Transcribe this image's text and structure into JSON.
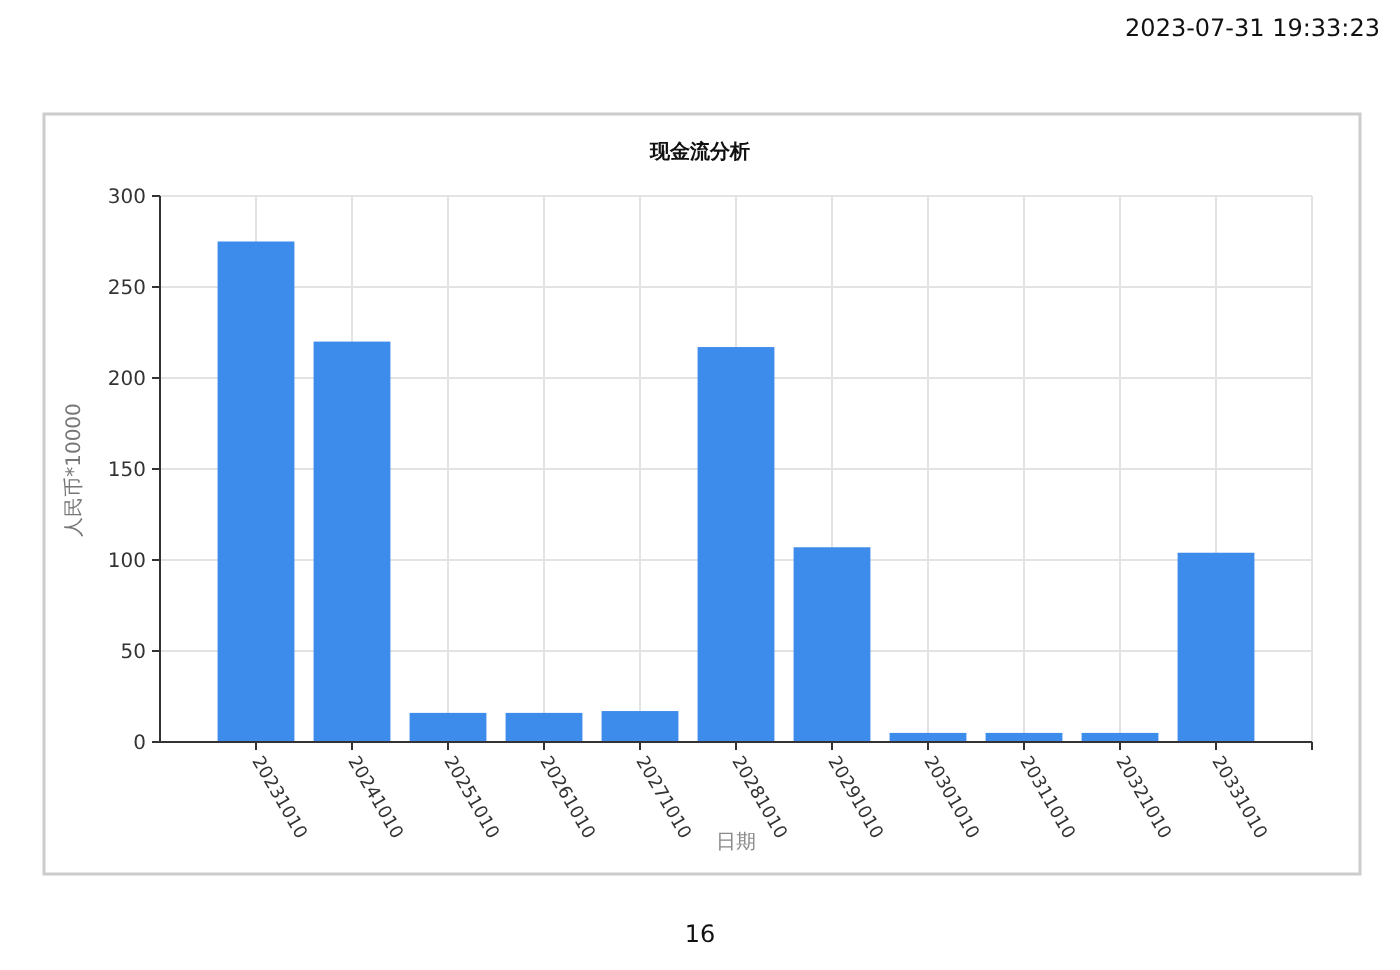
{
  "chart_data": {
    "type": "bar",
    "title": "现金流分析",
    "xlabel": "日期",
    "ylabel": "人民币*10000",
    "categories": [
      "20231010",
      "20241010",
      "20251010",
      "20261010",
      "20271010",
      "20281010",
      "20291010",
      "20301010",
      "20311010",
      "20321010",
      "20331010"
    ],
    "values": [
      275,
      220,
      16,
      16,
      17,
      217,
      107,
      5,
      5,
      5,
      104
    ],
    "color": "#3d8bea",
    "ylim": [
      0,
      300
    ],
    "yticks": [
      0,
      50,
      100,
      150,
      200,
      250,
      300
    ],
    "grid": true,
    "annotations": [
      "2023-07-31 19:33:23",
      "16"
    ]
  }
}
